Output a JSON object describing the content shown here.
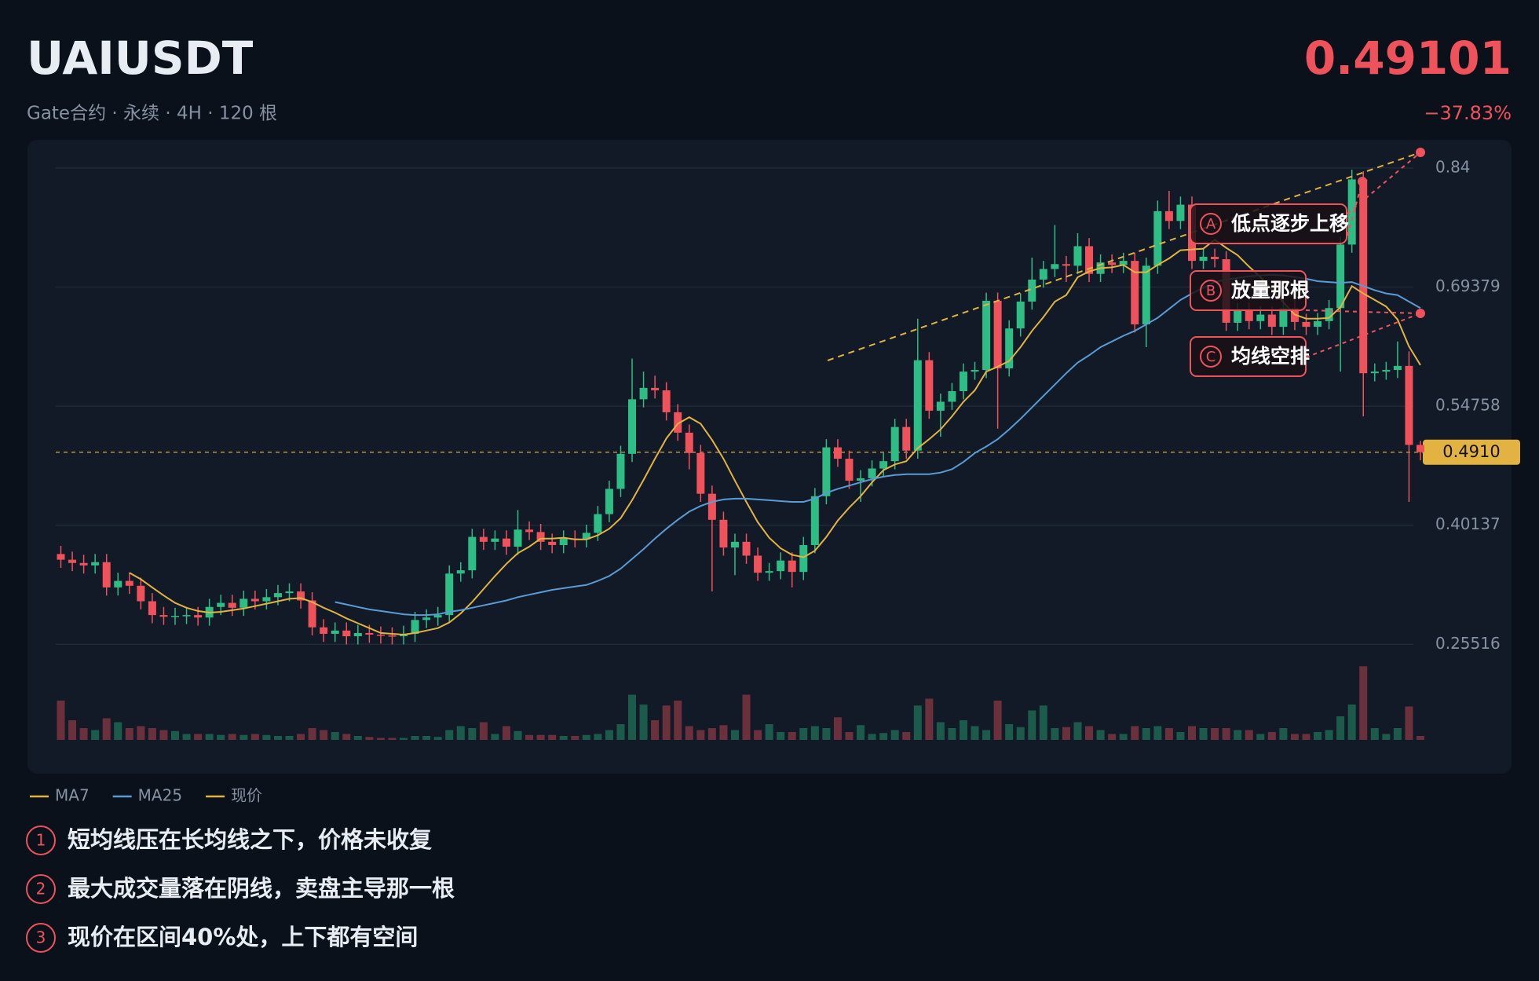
{
  "header": {
    "symbol": "UAIUSDT",
    "subtitle": "Gate合约 · 永续 · 4H · 120 根",
    "price": "0.49101",
    "change": "−37.83%"
  },
  "chart_data": {
    "type": "candlestick",
    "open": [
      0.366,
      0.359,
      0.355,
      0.352,
      0.356,
      0.325,
      0.333,
      0.327,
      0.308,
      0.291,
      0.289,
      0.29,
      0.291,
      0.288,
      0.301,
      0.306,
      0.3,
      0.311,
      0.308,
      0.313,
      0.318,
      0.32,
      0.309,
      0.276,
      0.268,
      0.272,
      0.265,
      0.269,
      0.267,
      0.266,
      0.265,
      0.268,
      0.285,
      0.288,
      0.291,
      0.342,
      0.346,
      0.387,
      0.381,
      0.385,
      0.375,
      0.396,
      0.393,
      0.381,
      0.377,
      0.385,
      0.384,
      0.392,
      0.415,
      0.446,
      0.489,
      0.556,
      0.57,
      0.567,
      0.54,
      0.515,
      0.49,
      0.44,
      0.408,
      0.374,
      0.381,
      0.364,
      0.343,
      0.345,
      0.358,
      0.344,
      0.377,
      0.437,
      0.497,
      0.483,
      0.456,
      0.459,
      0.471,
      0.48,
      0.522,
      0.493,
      0.604,
      0.542,
      0.553,
      0.566,
      0.59,
      0.592,
      0.677,
      0.594,
      0.643,
      0.676,
      0.703,
      0.716,
      0.722,
      0.72,
      0.744,
      0.71,
      0.724,
      0.721,
      0.726,
      0.648,
      0.72,
      0.787,
      0.775,
      0.795,
      0.726,
      0.731,
      0.728,
      0.65,
      0.665,
      0.652,
      0.66,
      0.645,
      0.668,
      0.651,
      0.645,
      0.652,
      0.668,
      0.746,
      0.826,
      0.588,
      0.59,
      0.592,
      0.597,
      0.5
    ],
    "high": [
      0.376,
      0.369,
      0.365,
      0.366,
      0.366,
      0.343,
      0.343,
      0.337,
      0.318,
      0.301,
      0.3,
      0.301,
      0.301,
      0.311,
      0.316,
      0.316,
      0.321,
      0.321,
      0.323,
      0.328,
      0.33,
      0.33,
      0.319,
      0.286,
      0.282,
      0.282,
      0.279,
      0.279,
      0.277,
      0.276,
      0.278,
      0.295,
      0.298,
      0.301,
      0.352,
      0.356,
      0.397,
      0.397,
      0.395,
      0.395,
      0.42,
      0.406,
      0.403,
      0.391,
      0.395,
      0.395,
      0.402,
      0.425,
      0.456,
      0.499,
      0.606,
      0.59,
      0.585,
      0.577,
      0.55,
      0.525,
      0.5,
      0.45,
      0.418,
      0.391,
      0.391,
      0.374,
      0.355,
      0.368,
      0.368,
      0.387,
      0.447,
      0.507,
      0.507,
      0.493,
      0.469,
      0.481,
      0.49,
      0.532,
      0.532,
      0.655,
      0.614,
      0.563,
      0.576,
      0.6,
      0.602,
      0.687,
      0.687,
      0.653,
      0.686,
      0.73,
      0.726,
      0.77,
      0.732,
      0.76,
      0.754,
      0.734,
      0.734,
      0.736,
      0.736,
      0.73,
      0.8,
      0.812,
      0.805,
      0.805,
      0.741,
      0.741,
      0.738,
      0.675,
      0.675,
      0.67,
      0.67,
      0.678,
      0.678,
      0.661,
      0.662,
      0.678,
      0.756,
      0.838,
      0.836,
      0.6,
      0.602,
      0.627,
      0.615,
      0.505
    ],
    "low": [
      0.349,
      0.345,
      0.342,
      0.342,
      0.315,
      0.315,
      0.317,
      0.298,
      0.281,
      0.279,
      0.279,
      0.28,
      0.278,
      0.278,
      0.291,
      0.29,
      0.29,
      0.298,
      0.298,
      0.303,
      0.308,
      0.299,
      0.266,
      0.258,
      0.258,
      0.255,
      0.255,
      0.257,
      0.256,
      0.255,
      0.255,
      0.258,
      0.275,
      0.278,
      0.281,
      0.332,
      0.336,
      0.371,
      0.371,
      0.365,
      0.365,
      0.383,
      0.371,
      0.367,
      0.367,
      0.374,
      0.374,
      0.382,
      0.405,
      0.436,
      0.479,
      0.546,
      0.557,
      0.53,
      0.505,
      0.47,
      0.43,
      0.32,
      0.364,
      0.34,
      0.354,
      0.333,
      0.333,
      0.335,
      0.325,
      0.334,
      0.367,
      0.427,
      0.473,
      0.446,
      0.43,
      0.449,
      0.461,
      0.47,
      0.483,
      0.483,
      0.532,
      0.51,
      0.543,
      0.556,
      0.58,
      0.582,
      0.52,
      0.584,
      0.633,
      0.666,
      0.693,
      0.706,
      0.7,
      0.71,
      0.7,
      0.7,
      0.711,
      0.711,
      0.638,
      0.62,
      0.71,
      0.765,
      0.765,
      0.716,
      0.716,
      0.718,
      0.64,
      0.64,
      0.642,
      0.642,
      0.635,
      0.635,
      0.641,
      0.635,
      0.635,
      0.642,
      0.59,
      0.736,
      0.535,
      0.578,
      0.58,
      0.582,
      0.43,
      0.481
    ],
    "close": [
      0.359,
      0.355,
      0.352,
      0.356,
      0.325,
      0.333,
      0.327,
      0.308,
      0.291,
      0.289,
      0.29,
      0.291,
      0.288,
      0.301,
      0.306,
      0.3,
      0.311,
      0.308,
      0.313,
      0.318,
      0.32,
      0.309,
      0.276,
      0.268,
      0.272,
      0.265,
      0.269,
      0.267,
      0.266,
      0.265,
      0.268,
      0.285,
      0.288,
      0.291,
      0.342,
      0.346,
      0.387,
      0.381,
      0.385,
      0.375,
      0.396,
      0.393,
      0.381,
      0.377,
      0.385,
      0.384,
      0.392,
      0.415,
      0.446,
      0.489,
      0.556,
      0.57,
      0.567,
      0.54,
      0.515,
      0.49,
      0.44,
      0.408,
      0.374,
      0.381,
      0.364,
      0.343,
      0.345,
      0.358,
      0.344,
      0.377,
      0.437,
      0.497,
      0.483,
      0.456,
      0.459,
      0.471,
      0.48,
      0.522,
      0.493,
      0.604,
      0.542,
      0.553,
      0.566,
      0.59,
      0.592,
      0.677,
      0.594,
      0.643,
      0.676,
      0.703,
      0.716,
      0.722,
      0.72,
      0.744,
      0.71,
      0.724,
      0.721,
      0.726,
      0.648,
      0.72,
      0.787,
      0.775,
      0.795,
      0.726,
      0.731,
      0.728,
      0.65,
      0.665,
      0.652,
      0.66,
      0.645,
      0.668,
      0.651,
      0.645,
      0.652,
      0.668,
      0.746,
      0.826,
      0.588,
      0.59,
      0.592,
      0.597,
      0.5,
      0.491
    ],
    "volume": [
      40,
      20,
      12,
      10,
      22,
      18,
      12,
      14,
      12,
      10,
      9,
      6,
      6,
      6,
      5,
      6,
      5,
      6,
      5,
      4,
      4,
      6,
      12,
      10,
      8,
      6,
      4,
      3,
      2,
      2,
      2,
      4,
      4,
      3,
      10,
      14,
      12,
      18,
      6,
      14,
      9,
      5,
      5,
      5,
      4,
      4,
      5,
      6,
      10,
      16,
      46,
      36,
      20,
      35,
      40,
      14,
      10,
      12,
      15,
      10,
      46,
      10,
      16,
      8,
      8,
      12,
      14,
      12,
      23,
      8,
      15,
      6,
      7,
      10,
      8,
      35,
      42,
      18,
      12,
      20,
      14,
      10,
      40,
      16,
      13,
      30,
      35,
      12,
      13,
      18,
      14,
      10,
      6,
      6,
      14,
      12,
      14,
      12,
      8,
      14,
      12,
      12,
      12,
      10,
      10,
      6,
      8,
      12,
      6,
      6,
      8,
      10,
      24,
      36,
      75,
      12,
      6,
      12,
      34,
      4
    ],
    "series": [
      {
        "name": "MA7",
        "color": "#e3b341",
        "values": [
          null,
          null,
          null,
          null,
          null,
          null,
          0.343,
          0.335,
          0.325,
          0.315,
          0.306,
          0.3,
          0.296,
          0.294,
          0.295,
          0.297,
          0.299,
          0.302,
          0.305,
          0.308,
          0.311,
          0.312,
          0.307,
          0.3,
          0.294,
          0.287,
          0.281,
          0.275,
          0.269,
          0.268,
          0.267,
          0.269,
          0.272,
          0.275,
          0.282,
          0.293,
          0.307,
          0.323,
          0.339,
          0.354,
          0.367,
          0.375,
          0.385,
          0.385,
          0.386,
          0.384,
          0.384,
          0.389,
          0.397,
          0.41,
          0.432,
          0.457,
          0.483,
          0.508,
          0.526,
          0.534,
          0.526,
          0.506,
          0.483,
          0.456,
          0.43,
          0.405,
          0.386,
          0.373,
          0.365,
          0.362,
          0.37,
          0.387,
          0.407,
          0.423,
          0.437,
          0.454,
          0.469,
          0.476,
          0.48,
          0.496,
          0.507,
          0.519,
          0.535,
          0.553,
          0.567,
          0.59,
          0.596,
          0.603,
          0.62,
          0.64,
          0.657,
          0.676,
          0.684,
          0.706,
          0.713,
          0.717,
          0.718,
          0.721,
          0.712,
          0.712,
          0.721,
          0.729,
          0.739,
          0.74,
          0.741,
          0.752,
          0.742,
          0.733,
          0.719,
          0.706,
          0.691,
          0.675,
          0.66,
          0.655,
          0.655,
          0.656,
          0.669,
          0.695,
          0.686,
          0.678,
          0.67,
          0.654,
          0.621,
          0.598
        ]
      },
      {
        "name": "MA25",
        "color": "#5b9bd5",
        "values": [
          null,
          null,
          null,
          null,
          null,
          null,
          null,
          null,
          null,
          null,
          null,
          null,
          null,
          null,
          null,
          null,
          null,
          null,
          null,
          null,
          null,
          null,
          null,
          null,
          0.307,
          0.304,
          0.301,
          0.298,
          0.296,
          0.294,
          0.292,
          0.291,
          0.291,
          0.292,
          0.295,
          0.297,
          0.3,
          0.303,
          0.306,
          0.309,
          0.313,
          0.316,
          0.319,
          0.322,
          0.324,
          0.326,
          0.328,
          0.333,
          0.339,
          0.348,
          0.36,
          0.372,
          0.385,
          0.397,
          0.408,
          0.418,
          0.425,
          0.43,
          0.433,
          0.434,
          0.434,
          0.433,
          0.432,
          0.431,
          0.43,
          0.43,
          0.434,
          0.441,
          0.446,
          0.45,
          0.454,
          0.458,
          0.461,
          0.463,
          0.464,
          0.464,
          0.464,
          0.466,
          0.47,
          0.479,
          0.49,
          0.498,
          0.507,
          0.519,
          0.532,
          0.546,
          0.56,
          0.574,
          0.588,
          0.601,
          0.61,
          0.62,
          0.627,
          0.634,
          0.64,
          0.648,
          0.656,
          0.667,
          0.678,
          0.686,
          0.693,
          0.7,
          0.703,
          0.705,
          0.707,
          0.708,
          0.709,
          0.708,
          0.706,
          0.704,
          0.701,
          0.7,
          0.699,
          0.7,
          0.695,
          0.69,
          0.686,
          0.684,
          0.676,
          0.668
        ]
      }
    ],
    "current_price": {
      "name": "现价",
      "value": 0.491,
      "label": "0.4910",
      "color": "#e3b341"
    },
    "up_color": "#2ebd85",
    "down_color": "#f0525c",
    "ylim": [
      0.24,
      0.865
    ],
    "yticks": [
      0.25516,
      0.40137,
      0.54758,
      0.69379,
      0.84
    ],
    "grid": true,
    "annotations": [
      {
        "marker": "A",
        "text": "低点逐步上移"
      },
      {
        "marker": "B",
        "text": "放量那根"
      },
      {
        "marker": "C",
        "text": "均线空排"
      }
    ]
  },
  "notes": [
    {
      "marker": "1",
      "text": "短均线压在长均线之下，价格未收复"
    },
    {
      "marker": "2",
      "text": "最大成交量落在阴线，卖盘主导那一根"
    },
    {
      "marker": "3",
      "text": "现价在区间40%处，上下都有空间"
    }
  ]
}
